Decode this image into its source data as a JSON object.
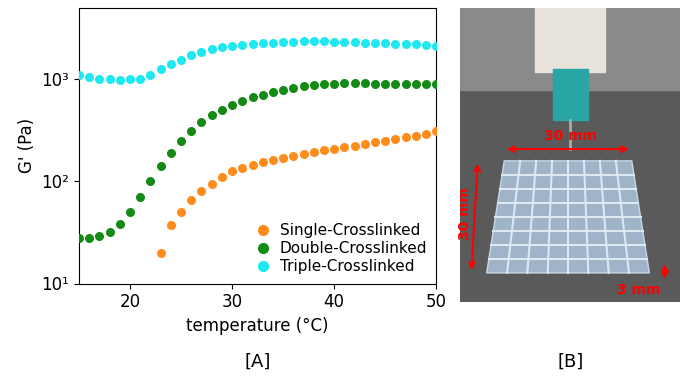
{
  "chart_data": {
    "type": "scatter",
    "caption": "[A]",
    "x_label": "temperature (°C)",
    "y_label": "G' (Pa)",
    "log": "y",
    "legend": "lower right",
    "marker": "o",
    "xlim": [
      15,
      50
    ],
    "xticks": [
      20,
      30,
      40,
      50
    ],
    "ylim": [
      10,
      5000
    ],
    "yticks": [
      {
        "value": 10,
        "label": "10¹"
      },
      {
        "value": 100,
        "label": "10²"
      },
      {
        "value": 1000,
        "label": "10³"
      }
    ],
    "series": [
      {
        "name": "Single-Crosslinked",
        "color": "#ff8c1a",
        "x": [
          23,
          24,
          25,
          26,
          27,
          28,
          29,
          30,
          31,
          32,
          33,
          34,
          35,
          36,
          37,
          38,
          39,
          40,
          41,
          42,
          43,
          44,
          45,
          46,
          47,
          48,
          49,
          50
        ],
        "values": [
          20,
          37,
          50,
          65,
          80,
          95,
          110,
          125,
          135,
          145,
          155,
          163,
          170,
          177,
          185,
          192,
          200,
          208,
          215,
          222,
          230,
          240,
          250,
          260,
          270,
          280,
          290,
          310
        ]
      },
      {
        "name": "Double-Crosslinked",
        "color": "#138a13",
        "x": [
          15,
          16,
          17,
          18,
          19,
          20,
          21,
          22,
          23,
          24,
          25,
          26,
          27,
          28,
          29,
          30,
          31,
          32,
          33,
          34,
          35,
          36,
          37,
          38,
          39,
          40,
          41,
          42,
          43,
          44,
          45,
          46,
          47,
          48,
          49,
          50
        ],
        "values": [
          28,
          28,
          29,
          32,
          38,
          50,
          70,
          100,
          140,
          190,
          250,
          310,
          380,
          440,
          500,
          560,
          610,
          660,
          700,
          740,
          780,
          820,
          850,
          870,
          890,
          900,
          910,
          910,
          910,
          900,
          900,
          890,
          890,
          890,
          890,
          900
        ]
      },
      {
        "name": "Triple-Crosslinked",
        "color": "#1ee8f0",
        "x": [
          15,
          16,
          17,
          18,
          19,
          20,
          21,
          22,
          23,
          24,
          25,
          26,
          27,
          28,
          29,
          30,
          31,
          32,
          33,
          34,
          35,
          36,
          37,
          38,
          39,
          40,
          41,
          42,
          43,
          44,
          45,
          46,
          47,
          48,
          49,
          50
        ],
        "values": [
          1100,
          1050,
          1000,
          990,
          980,
          990,
          1000,
          1100,
          1250,
          1400,
          1550,
          1700,
          1850,
          1950,
          2050,
          2100,
          2150,
          2200,
          2250,
          2250,
          2300,
          2300,
          2350,
          2350,
          2350,
          2300,
          2300,
          2300,
          2250,
          2250,
          2250,
          2200,
          2200,
          2200,
          2150,
          2100
        ]
      }
    ]
  },
  "photo": {
    "caption": "[B]",
    "width_label": "30 mm",
    "length_label": "30 mm",
    "height_label": "3 mm"
  }
}
